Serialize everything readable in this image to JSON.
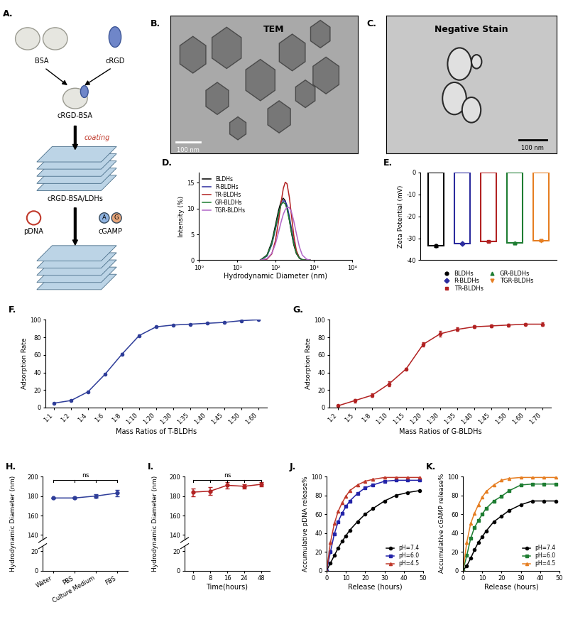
{
  "images": {
    "A": {
      "panel": "A.",
      "labels": {
        "bsa": "BSA",
        "crgd": "cRGD",
        "conjugate": "cRGD-BSA",
        "coating": "coating",
        "carrier": "cRGD-BSA/LDHs",
        "pdna": "pDNA",
        "base_a": "A",
        "base_g": "G",
        "cgamp": "cGAMP"
      }
    },
    "B": {
      "panel": "B.",
      "title": "TEM",
      "scale_bar": "100 nm"
    },
    "C": {
      "panel": "C.",
      "title": "Negative Stain",
      "scale_bar": "100 nm"
    }
  },
  "chart_data": [
    {
      "panel": "D.",
      "type": "line",
      "x_label": "Hydrodynamic Diameter (nm)",
      "y_label": "Intensity (%)",
      "log": "x",
      "x": [
        40,
        60,
        80,
        100,
        120,
        140,
        160,
        180,
        200,
        230,
        260,
        300,
        350,
        420,
        500,
        650,
        800
      ],
      "series": [
        {
          "name": "BLDHs",
          "color": "#000000",
          "values": [
            0,
            1.0,
            3.5,
            6.8,
            9.6,
            11.4,
            12.0,
            11.5,
            10.2,
            7.8,
            5.4,
            3.0,
            1.3,
            0.4,
            0.1,
            0,
            0
          ]
        },
        {
          "name": "R-BLDHs",
          "color": "#2b2b9e",
          "values": [
            0,
            0.8,
            3.0,
            6.0,
            8.8,
            10.8,
            11.5,
            11.4,
            10.6,
            8.5,
            6.2,
            3.7,
            1.7,
            0.5,
            0.1,
            0,
            0
          ]
        },
        {
          "name": "TR-BLDHs",
          "color": "#b22222",
          "values": [
            0,
            0.2,
            1.2,
            3.8,
            7.5,
            11.2,
            13.9,
            15.1,
            14.8,
            12.2,
            8.8,
            4.8,
            1.9,
            0.4,
            0.1,
            0,
            0
          ]
        },
        {
          "name": "GR-BLDHs",
          "color": "#1e7d32",
          "values": [
            0,
            0.9,
            3.2,
            6.3,
            9.0,
            10.8,
            11.2,
            10.9,
            9.9,
            7.8,
            5.6,
            3.2,
            1.4,
            0.4,
            0.1,
            0,
            0
          ]
        },
        {
          "name": "TGR-BLDHs",
          "color": "#b266c8",
          "values": [
            0,
            0.3,
            1.3,
            3.2,
            5.4,
            7.4,
            8.9,
            9.8,
            10.2,
            10.2,
            9.4,
            7.6,
            5.2,
            2.6,
            1.0,
            0.2,
            0
          ]
        }
      ],
      "xlim": [
        1,
        10000
      ],
      "xticks": [
        {
          "value": 1,
          "label": "10⁰"
        },
        {
          "value": 10,
          "label": "10¹"
        },
        {
          "value": 100,
          "label": "10²"
        },
        {
          "value": 1000,
          "label": "10³"
        },
        {
          "value": 10000,
          "label": "10⁴"
        }
      ],
      "ylim": [
        0,
        17
      ],
      "yticks": [
        0,
        5,
        10,
        15
      ],
      "legend": "upper left"
    },
    {
      "panel": "E.",
      "type": "bar",
      "y_label": "Zeta Potential (mV)",
      "tick_labels": "y",
      "series": [
        {
          "name": "BLDHs",
          "color": "#000000",
          "marker": "circle",
          "values": [
            -33.5
          ],
          "errors": [
            0.4
          ]
        },
        {
          "name": "R-BLDHs",
          "color": "#2b2b9e",
          "marker": "diamond",
          "values": [
            -32.5
          ],
          "errors": [
            0.3
          ]
        },
        {
          "name": "TR-BLDHs",
          "color": "#b22222",
          "marker": "square",
          "values": [
            -31.5
          ],
          "errors": [
            0.3
          ]
        },
        {
          "name": "GR-BLDHs",
          "color": "#1e7d32",
          "marker": "triangle",
          "values": [
            -32.0
          ],
          "errors": [
            0.3
          ]
        },
        {
          "name": "TGR-BLDHs",
          "color": "#e67e22",
          "marker": "triangle_down",
          "values": [
            -31.0
          ],
          "errors": [
            0.3
          ]
        }
      ],
      "ylim": [
        -40,
        0
      ],
      "yticks": [
        0,
        -10,
        -20,
        -30,
        -40
      ],
      "legend": "lower center"
    },
    {
      "panel": "F.",
      "type": "line",
      "x_label": "Mass Ratios of T-BLDHs",
      "y_label": "Adsorption Rate",
      "categories": [
        "1:1",
        "1:2",
        "1:4",
        "1:6",
        "1:8",
        "1:10",
        "1:20",
        "1:30",
        "1:35",
        "1:40",
        "1:45",
        "1:50",
        "1:60"
      ],
      "values": [
        5,
        8,
        18,
        38,
        61,
        82,
        92,
        94,
        95,
        96,
        97,
        99,
        100
      ],
      "errors": [
        0.5,
        0.5,
        0.8,
        1,
        1,
        1,
        1,
        1,
        0.8,
        0.8,
        0.8,
        0.8,
        0.5
      ],
      "color": "#2e3d99",
      "marker": "circle",
      "ylim": [
        0,
        100
      ],
      "yticks": [
        0,
        20,
        40,
        60,
        80,
        100
      ]
    },
    {
      "panel": "G.",
      "type": "line",
      "x_label": "Mass Ratios of G-BLDHs",
      "y_label": "Adsorption Rate",
      "categories": [
        "1:2",
        "1:5",
        "1:8",
        "1:10",
        "1:15",
        "1:20",
        "1:30",
        "1:35",
        "1:40",
        "1:45",
        "1:50",
        "1:60",
        "1:70"
      ],
      "values": [
        2,
        8,
        14,
        27,
        44,
        72,
        84,
        89,
        92,
        93,
        94,
        95,
        95
      ],
      "errors": [
        0.5,
        2,
        2,
        2.5,
        1,
        2.5,
        3,
        2,
        1.5,
        1.5,
        1.5,
        1.5,
        2
      ],
      "color": "#b22222",
      "marker": "circle",
      "ylim": [
        0,
        100
      ],
      "yticks": [
        0,
        20,
        40,
        60,
        80,
        100
      ]
    },
    {
      "panel": "H.",
      "type": "line",
      "y_label": "Hydrodynamic Diameter (nm)",
      "categories": [
        "Water",
        "PBS",
        "Culture Medium",
        "FBS"
      ],
      "values": [
        178,
        178,
        180,
        183
      ],
      "errors": [
        0.5,
        0.8,
        2,
        3
      ],
      "color": "#2e3d99",
      "marker": "circle",
      "ylim": [
        0,
        200
      ],
      "y_break": [
        25,
        135
      ],
      "yticks": [
        0,
        20,
        140,
        160,
        180,
        200
      ],
      "annotations": [
        "ns"
      ]
    },
    {
      "panel": "I.",
      "type": "line",
      "x_label": "Time(hours)",
      "y_label": "Hydrodynamic Diameter (nm)",
      "categories": [
        "0",
        "8",
        "16",
        "24",
        "48"
      ],
      "values": [
        184,
        185,
        191,
        190,
        192
      ],
      "errors": [
        4,
        4,
        3,
        2,
        2
      ],
      "color": "#b22222",
      "marker": "circle",
      "ylim": [
        0,
        200
      ],
      "y_break": [
        25,
        135
      ],
      "yticks": [
        0,
        20,
        140,
        160,
        180,
        200
      ],
      "annotations": [
        "ns"
      ]
    },
    {
      "panel": "J.",
      "type": "line",
      "x_label": "Release (hours)",
      "y_label": "Accumulative pDNA release%",
      "x": [
        0,
        2,
        4,
        6,
        8,
        10,
        12,
        16,
        20,
        24,
        30,
        36,
        42,
        48
      ],
      "series": [
        {
          "name": "pH=7.4",
          "color": "#000000",
          "marker": "circle",
          "values": [
            0,
            8,
            16,
            24,
            31,
            37,
            43,
            52,
            60,
            66,
            74,
            80,
            83,
            85
          ]
        },
        {
          "name": "pH=6.0",
          "color": "#2323a8",
          "marker": "square",
          "values": [
            0,
            20,
            39,
            52,
            61,
            68,
            74,
            82,
            88,
            91,
            95,
            96,
            96,
            96
          ]
        },
        {
          "name": "pH=4.5",
          "color": "#c0392b",
          "marker": "triangle",
          "values": [
            0,
            30,
            50,
            63,
            72,
            79,
            85,
            91,
            95,
            97,
            99,
            99,
            99,
            99
          ]
        }
      ],
      "xlim": [
        0,
        50
      ],
      "xticks": [
        0,
        10,
        20,
        30,
        40,
        50
      ],
      "ylim": [
        0,
        100
      ],
      "yticks": [
        0,
        20,
        40,
        60,
        80,
        100
      ],
      "legend": "lower right"
    },
    {
      "panel": "K.",
      "type": "line",
      "x_label": "Release (hours)",
      "y_label": "Accumulative cGAMP release%",
      "x": [
        0,
        2,
        4,
        6,
        8,
        10,
        12,
        16,
        20,
        24,
        30,
        36,
        42,
        48
      ],
      "series": [
        {
          "name": "pH=7.4",
          "color": "#000000",
          "marker": "circle",
          "values": [
            0,
            5,
            13,
            22,
            30,
            36,
            42,
            52,
            58,
            64,
            70,
            74,
            74,
            74
          ]
        },
        {
          "name": "pH=6.0",
          "color": "#1e7d32",
          "marker": "square",
          "values": [
            0,
            16,
            34,
            46,
            53,
            60,
            66,
            74,
            79,
            85,
            91,
            92,
            92,
            92
          ]
        },
        {
          "name": "pH=4.5",
          "color": "#e67e22",
          "marker": "triangle",
          "values": [
            0,
            30,
            50,
            61,
            70,
            78,
            84,
            91,
            96,
            98,
            99,
            99,
            99,
            99
          ]
        }
      ],
      "xlim": [
        0,
        50
      ],
      "xticks": [
        0,
        10,
        20,
        30,
        40,
        50
      ],
      "ylim": [
        0,
        100
      ],
      "yticks": [
        0,
        20,
        40,
        60,
        80,
        100
      ],
      "legend": "lower right"
    }
  ]
}
